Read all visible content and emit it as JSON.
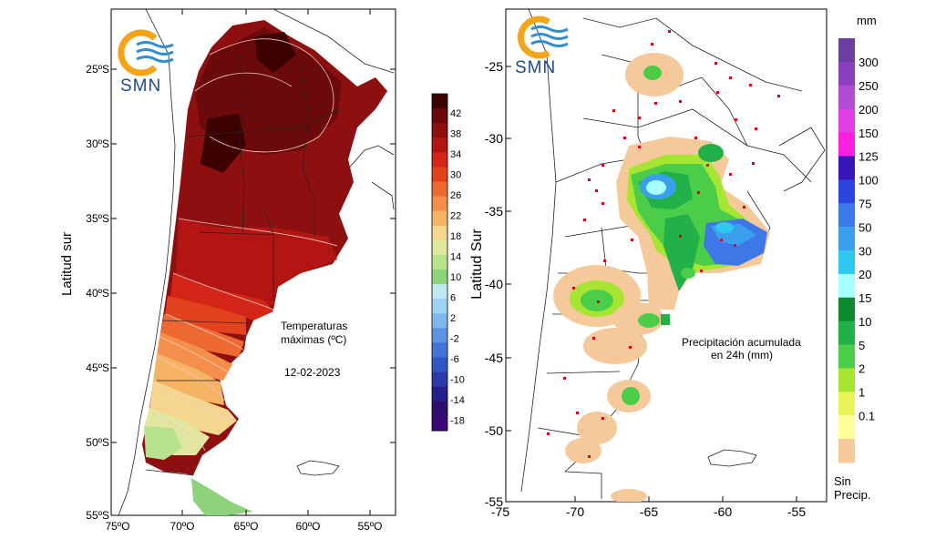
{
  "left_map": {
    "y_axis_label": "Latitud sur",
    "x_ticks": [
      "75ºO",
      "70ºO",
      "65ºO",
      "60ºO",
      "55ºO"
    ],
    "y_ticks": [
      "25ºS",
      "30ºS",
      "35ºS",
      "40ºS",
      "45ºS",
      "50ºS",
      "55ºS"
    ],
    "annotation_line1": "Temperaturas",
    "annotation_line2": "máximas (ºC)",
    "date": "12-02-2023",
    "logo_text": "SMN",
    "colorbar": {
      "labels": [
        "42",
        "38",
        "34",
        "30",
        "26",
        "22",
        "18",
        "14",
        "10",
        "6",
        "2",
        "-2",
        "-6",
        "-10",
        "-14",
        "-18"
      ],
      "colors": [
        "#3d0000",
        "#6b0a0a",
        "#8e0f0f",
        "#b31512",
        "#d32618",
        "#e3421f",
        "#ec6a32",
        "#f38f4a",
        "#f7b364",
        "#f5d68e",
        "#e2e7a0",
        "#b9e28f",
        "#8ed27c",
        "#bfe8f0",
        "#9fd3f3",
        "#7fb6ee",
        "#5e93e2",
        "#4373d6",
        "#3256c4",
        "#2a3aa8",
        "#22218a",
        "#2d0f6e",
        "#3b087a"
      ]
    }
  },
  "right_map": {
    "y_axis_label": "Latitud Sur",
    "x_ticks": [
      "-75",
      "-70",
      "-65",
      "-60",
      "-55"
    ],
    "y_ticks": [
      "-25",
      "-30",
      "-35",
      "-40",
      "-45",
      "-50",
      "-55"
    ],
    "annotation_line1": "Precipitación acumulada",
    "annotation_line2": "en 24h (mm)",
    "logo_text": "SMN",
    "colorbar": {
      "unit": "mm",
      "labels": [
        "300",
        "250",
        "200",
        "150",
        "125",
        "100",
        "75",
        "50",
        "30",
        "20",
        "15",
        "10",
        "5",
        "2",
        "1",
        "0.1"
      ],
      "no_precip_label_line1": "Sin",
      "no_precip_label_line2": "Precip.",
      "colors": [
        "#6b3ea0",
        "#8a3fbf",
        "#b24bd6",
        "#e03fe6",
        "#ff1fe0",
        "#3616b8",
        "#2d45e0",
        "#3e78e8",
        "#3aa0ee",
        "#2fc8f0",
        "#a8ffff",
        "#0f8a32",
        "#22b048",
        "#4ccd4a",
        "#a6e632",
        "#e9f45a",
        "#ffff9a",
        "#f5c99a"
      ]
    }
  },
  "colors": {
    "border_lines": "#222222",
    "station_marker": "#e0001a",
    "logo_orange": "#f2a51a",
    "logo_blue": "#2f8fd0"
  }
}
